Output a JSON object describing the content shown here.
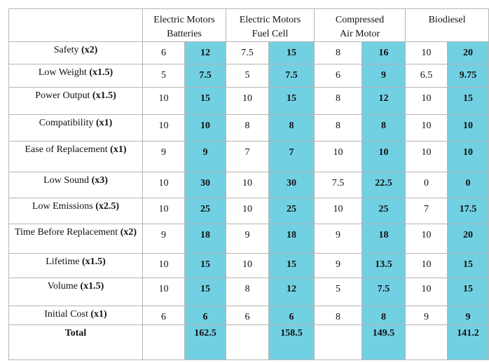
{
  "table": {
    "headers": [
      [
        "Electric Motors",
        "Batteries"
      ],
      [
        "Electric Motors",
        "Fuel Cell"
      ],
      [
        "Compressed",
        "Air Motor"
      ],
      [
        "Biodiesel"
      ]
    ],
    "rows": [
      {
        "label": "Safety",
        "weight": "(x2)",
        "values": [
          6,
          12,
          7.5,
          15,
          8,
          16,
          10,
          20
        ]
      },
      {
        "label": "Low Weight",
        "weight": "(x1.5)",
        "values": [
          5,
          7.5,
          5,
          7.5,
          6,
          9,
          6.5,
          9.75
        ]
      },
      {
        "label": "Power Output",
        "weight": "(x1.5)",
        "values": [
          10,
          15,
          10,
          15,
          8,
          12,
          10,
          15
        ]
      },
      {
        "label": "Compatibility",
        "weight": "(x1)",
        "values": [
          10,
          10,
          8,
          8,
          8,
          8,
          10,
          10
        ]
      },
      {
        "label": "Ease of Replacement",
        "weight": "(x1)",
        "values": [
          9,
          9,
          7,
          7,
          10,
          10,
          10,
          10
        ]
      },
      {
        "label": "Low Sound",
        "weight": "(x3)",
        "values": [
          10,
          30,
          10,
          30,
          7.5,
          22.5,
          0,
          0
        ]
      },
      {
        "label": "Low Emissions",
        "weight": "(x2.5)",
        "values": [
          10,
          25,
          10,
          25,
          10,
          25,
          7,
          17.5
        ]
      },
      {
        "label": "Time Before Replacement",
        "weight": "(x2)",
        "values": [
          9,
          18,
          9,
          18,
          9,
          18,
          10,
          20
        ]
      },
      {
        "label": "Lifetime",
        "weight": "(x1.5)",
        "values": [
          10,
          15,
          10,
          15,
          9,
          13.5,
          10,
          15
        ]
      },
      {
        "label": "Volume",
        "weight": "(x1.5)",
        "values": [
          10,
          15,
          8,
          12,
          5,
          7.5,
          10,
          15
        ]
      },
      {
        "label": "Initial Cost",
        "weight": "(x1)",
        "values": [
          6,
          6,
          6,
          6,
          8,
          8,
          9,
          9
        ]
      }
    ],
    "total": {
      "label": "Total",
      "values": [
        162.5,
        158.5,
        149.5,
        141.2
      ]
    }
  }
}
